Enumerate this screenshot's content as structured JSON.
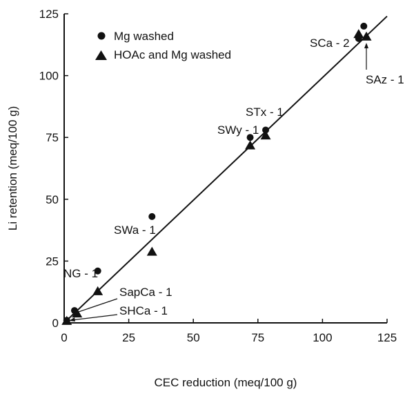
{
  "chart_data": {
    "type": "scatter",
    "xlabel": "CEC reduction (meq/100 g)",
    "ylabel": "Li retention (meq/100 g)",
    "xlim": [
      0,
      125
    ],
    "ylim": [
      0,
      125
    ],
    "xticks": [
      0,
      25,
      50,
      75,
      100,
      125
    ],
    "yticks": [
      0,
      25,
      50,
      75,
      100,
      125
    ],
    "grid": false,
    "legend_position": "top-left",
    "series": [
      {
        "name": "Mg washed",
        "marker": "circle",
        "points": [
          {
            "x": 1,
            "y": 1
          },
          {
            "x": 4,
            "y": 5
          },
          {
            "x": 13,
            "y": 21
          },
          {
            "x": 34,
            "y": 43
          },
          {
            "x": 72,
            "y": 75
          },
          {
            "x": 78,
            "y": 78
          },
          {
            "x": 114,
            "y": 115
          },
          {
            "x": 116,
            "y": 120
          }
        ]
      },
      {
        "name": "HOAc and Mg washed",
        "marker": "triangle",
        "points": [
          {
            "x": 1,
            "y": 1
          },
          {
            "x": 5,
            "y": 4
          },
          {
            "x": 13,
            "y": 13
          },
          {
            "x": 34,
            "y": 29
          },
          {
            "x": 72,
            "y": 72
          },
          {
            "x": 78,
            "y": 76
          },
          {
            "x": 114,
            "y": 117
          },
          {
            "x": 117,
            "y": 116
          }
        ]
      }
    ],
    "fit_line": {
      "from": [
        0,
        0
      ],
      "to": [
        125,
        124
      ]
    },
    "annotations": [
      {
        "text": "SCa - 2"
      },
      {
        "text": "SAz - 1"
      },
      {
        "text": "STx - 1"
      },
      {
        "text": "SWy - 1"
      },
      {
        "text": "SWa - 1"
      },
      {
        "text": "NG - 1"
      },
      {
        "text": "SapCa - 1"
      },
      {
        "text": "SHCa - 1"
      }
    ]
  }
}
